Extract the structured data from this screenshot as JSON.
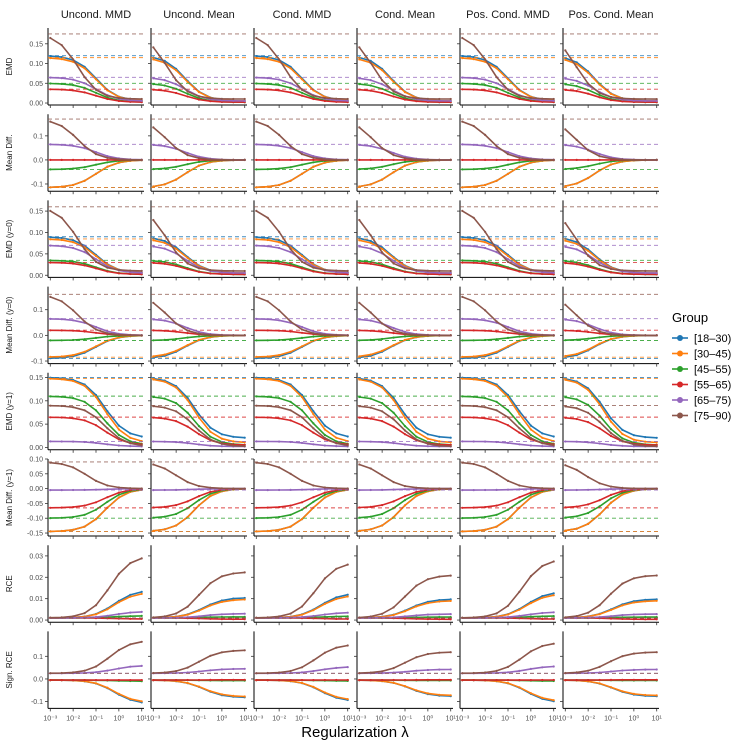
{
  "chart_data": {
    "type": "line",
    "xlabel": "Regularization λ",
    "x_scale": "log10",
    "x": [
      -3,
      -2.5,
      -2,
      -1.5,
      -1,
      -0.5,
      0,
      0.5,
      1
    ],
    "x_ticks": [
      -3,
      -2,
      -1,
      0,
      1
    ],
    "x_tick_labels": [
      "10⁻³",
      "10⁻²",
      "10⁻¹",
      "10⁰",
      "10¹"
    ],
    "columns": [
      "Uncond. MMD",
      "Uncond. Mean",
      "Cond. MMD",
      "Cond. Mean",
      "Pos. Cond. MMD",
      "Pos. Cond. Mean"
    ],
    "groups": [
      {
        "name": "[18–30)",
        "color": "#1f77b4"
      },
      {
        "name": "[30–45)",
        "color": "#ff7f0e"
      },
      {
        "name": "[45–55)",
        "color": "#2ca02c"
      },
      {
        "name": "[55–65)",
        "color": "#d62728"
      },
      {
        "name": "[65–75)",
        "color": "#9467bd"
      },
      {
        "name": "[75–90)",
        "color": "#8c564b"
      }
    ],
    "rows": [
      {
        "label": "EMD",
        "ylim": [
          -0.005,
          0.19
        ],
        "ticks": [
          0,
          0.05,
          0.1,
          0.15
        ],
        "tick_labels": [
          "0.00",
          "0.05",
          "0.10",
          "0.15"
        ],
        "baseline": [
          0.12,
          0.115,
          0.05,
          0.035,
          0.065,
          0.175
        ],
        "end": [
          0.005,
          0.005,
          0.002,
          0.002,
          0.005,
          0.01
        ],
        "mid": [
          0.5,
          0.5,
          0.5,
          0.5,
          0.5,
          0.3
        ]
      },
      {
        "label": "Mean Diff.",
        "ylim": [
          -0.13,
          0.19
        ],
        "ticks": [
          -0.1,
          0,
          0.1
        ],
        "tick_labels": [
          "-0.1",
          "0.0",
          "0.1"
        ],
        "baseline": [
          -0.115,
          -0.115,
          -0.04,
          0.0,
          0.065,
          0.17
        ],
        "end": [
          0,
          0,
          0,
          0,
          0,
          0
        ],
        "mid": [
          0.5,
          0.5,
          0.5,
          0.5,
          0.5,
          0.3
        ]
      },
      {
        "label": "EMD (y=0)",
        "ylim": [
          -0.005,
          0.175
        ],
        "ticks": [
          0,
          0.05,
          0.1,
          0.15
        ],
        "tick_labels": [
          "0.00",
          "0.05",
          "0.10",
          "0.15"
        ],
        "baseline": [
          0.09,
          0.085,
          0.035,
          0.03,
          0.07,
          0.16
        ],
        "end": [
          0.005,
          0.005,
          0.002,
          0.002,
          0.005,
          0.01
        ],
        "mid": [
          0.5,
          0.5,
          0.5,
          0.5,
          0.5,
          0.3
        ]
      },
      {
        "label": "Mean Diff. (y=0)",
        "ylim": [
          -0.11,
          0.19
        ],
        "ticks": [
          -0.1,
          0,
          0.1
        ],
        "tick_labels": [
          "-0.1",
          "0.0",
          "0.1"
        ],
        "baseline": [
          -0.09,
          -0.085,
          -0.02,
          0.02,
          0.065,
          0.16
        ],
        "end": [
          0,
          0,
          0,
          0,
          0,
          0
        ],
        "mid": [
          0.5,
          0.5,
          0.5,
          0.5,
          0.5,
          0.3
        ]
      },
      {
        "label": "EMD (y=1)",
        "ylim": [
          -0.005,
          0.16
        ],
        "ticks": [
          0,
          0.05,
          0.1,
          0.15
        ],
        "tick_labels": [
          "0.00",
          "0.05",
          "0.10",
          "0.15"
        ],
        "baseline": [
          0.15,
          0.148,
          0.11,
          0.065,
          0.013,
          0.09
        ],
        "end": [
          0.02,
          0.01,
          0.005,
          0.005,
          0.002,
          0.002
        ],
        "mid": [
          0.6,
          0.6,
          0.6,
          0.6,
          0.6,
          0.6
        ]
      },
      {
        "label": "Mean Diff. (y=1)",
        "ylim": [
          -0.16,
          0.1
        ],
        "ticks": [
          -0.15,
          -0.1,
          -0.05,
          0,
          0.05,
          0.1
        ],
        "tick_labels": [
          "-0.15",
          "-0.10",
          "-0.05",
          "0.00",
          "0.05",
          "0.10"
        ],
        "baseline": [
          -0.145,
          -0.145,
          -0.1,
          -0.065,
          -0.005,
          0.09
        ],
        "end": [
          0,
          0,
          0,
          0,
          0,
          0
        ],
        "mid": [
          0.6,
          0.6,
          0.6,
          0.6,
          0.6,
          0.4
        ]
      },
      {
        "label": "RCE",
        "ylim": [
          -0.001,
          0.035
        ],
        "ticks": [
          0,
          0.01,
          0.02,
          0.03
        ],
        "tick_labels": [
          "0.00",
          "0.01",
          "0.02",
          "0.03"
        ],
        "baseline": [
          0.001,
          0.001,
          0.001,
          0.001,
          0.001,
          0.001
        ],
        "end": [
          0.014,
          0.013,
          0.002,
          0.0005,
          0.004,
          0.03
        ],
        "mid": [
          0.7,
          0.7,
          0.7,
          0.7,
          0.7,
          0.65
        ]
      },
      {
        "label": "Sign. RCE",
        "ylim": [
          -0.13,
          0.21
        ],
        "ticks": [
          -0.1,
          0,
          0.1
        ],
        "tick_labels": [
          "-0.1",
          "0.0",
          "0.1"
        ],
        "baseline": [
          -0.005,
          -0.005,
          -0.005,
          -0.005,
          0.025,
          0.025
        ],
        "end": [
          -0.11,
          -0.105,
          -0.01,
          -0.005,
          0.06,
          0.17
        ],
        "mid": [
          0.7,
          0.7,
          0.7,
          0.7,
          0.7,
          0.65
        ]
      }
    ],
    "legend": {
      "title": "Group",
      "position": "right"
    }
  }
}
